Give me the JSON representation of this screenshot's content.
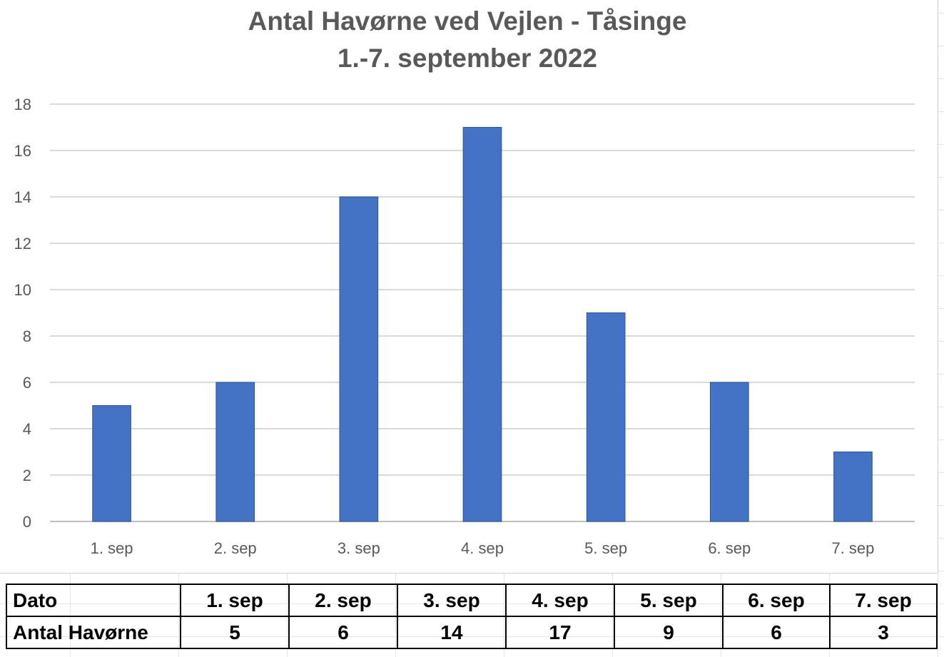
{
  "chart_data": {
    "type": "bar",
    "title": "Antal Havørne ved Vejlen - Tåsinge",
    "subtitle": "1.-7. september 2022",
    "categories": [
      "1. sep",
      "2.  sep",
      "3.  sep",
      "4.  sep",
      "5.  sep",
      "6.  sep",
      "7.  sep"
    ],
    "values": [
      5,
      6,
      14,
      17,
      9,
      6,
      3
    ],
    "ylim": [
      0,
      18
    ],
    "yticks": [
      0,
      2,
      4,
      6,
      8,
      10,
      12,
      14,
      16,
      18
    ],
    "grid": true,
    "legend": "none",
    "bar_color": "#4472C4"
  },
  "table": {
    "header_label": "Dato",
    "row_label": "Antal Havørne",
    "dates": [
      "1. sep",
      "2.  sep",
      "3.  sep",
      "4.  sep",
      "5.  sep",
      "6.  sep",
      "7.  sep"
    ],
    "counts": [
      "5",
      "6",
      "14",
      "17",
      "9",
      "6",
      "3"
    ]
  }
}
